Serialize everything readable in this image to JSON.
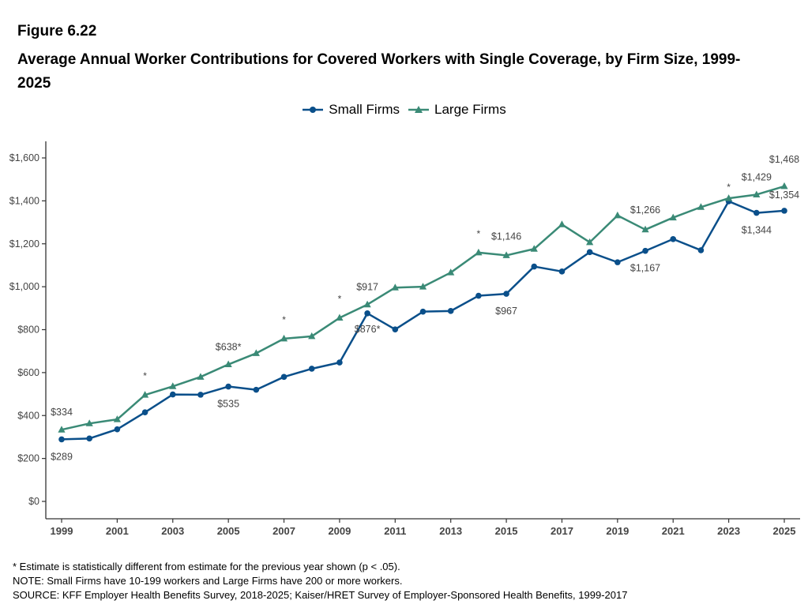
{
  "figure_label": "Figure 6.22",
  "title": "Average Annual Worker Contributions for Covered Workers with Single Coverage, by Firm Size, 1999-2025",
  "legend": [
    {
      "label": "Small Firms",
      "color": "#0a4f8a",
      "marker": "circle"
    },
    {
      "label": "Large Firms",
      "color": "#3a8a76",
      "marker": "triangle"
    }
  ],
  "footnotes": {
    "significance": "* Estimate is statistically different from estimate for the previous year shown (p < .05).",
    "note": "NOTE: Small Firms have 10-199 workers and Large Firms have 200 or more workers.",
    "source": "SOURCE: KFF Employer Health Benefits Survey, 2018-2025; Kaiser/HRET Survey of Employer-Sponsored Health Benefits, 1999-2017"
  },
  "chart_data": {
    "type": "line",
    "x": [
      1999,
      2000,
      2001,
      2002,
      2003,
      2004,
      2005,
      2006,
      2007,
      2008,
      2009,
      2010,
      2011,
      2012,
      2013,
      2014,
      2015,
      2016,
      2017,
      2018,
      2019,
      2020,
      2021,
      2022,
      2023,
      2024,
      2025
    ],
    "xlim": [
      1999,
      2025
    ],
    "ylim": [
      0,
      1600
    ],
    "xticks": [
      "1999",
      "2001",
      "2003",
      "2005",
      "2007",
      "2009",
      "2011",
      "2013",
      "2015",
      "2017",
      "2019",
      "2021",
      "2023",
      "2025"
    ],
    "yticks": [
      "$0",
      "$200",
      "$400",
      "$600",
      "$800",
      "$1,000",
      "$1,200",
      "$1,400",
      "$1,600"
    ],
    "grid": false,
    "legend_position": "top-center",
    "series": [
      {
        "name": "Small Firms",
        "color": "#0a4f8a",
        "marker": "circle",
        "values": [
          289,
          293,
          336,
          415,
          498,
          497,
          535,
          520,
          580,
          618,
          647,
          876,
          801,
          884,
          887,
          958,
          967,
          1094,
          1071,
          1161,
          1114,
          1167,
          1222,
          1170,
          1398,
          1344,
          1354
        ]
      },
      {
        "name": "Large Firms",
        "color": "#3a8a76",
        "marker": "triangle",
        "values": [
          334,
          363,
          382,
          496,
          536,
          580,
          638,
          690,
          758,
          769,
          855,
          917,
          996,
          1000,
          1066,
          1159,
          1146,
          1176,
          1290,
          1207,
          1332,
          1266,
          1322,
          1371,
          1412,
          1429,
          1468
        ]
      }
    ],
    "data_labels": [
      {
        "series": 0,
        "year": 1999,
        "text": "$289"
      },
      {
        "series": 1,
        "year": 1999,
        "text": "$334"
      },
      {
        "series": 0,
        "year": 2005,
        "text": "$535"
      },
      {
        "series": 1,
        "year": 2005,
        "text": "$638*"
      },
      {
        "series": 0,
        "year": 2010,
        "text": "$876*"
      },
      {
        "series": 1,
        "year": 2010,
        "text": "$917"
      },
      {
        "series": 0,
        "year": 2015,
        "text": "$967"
      },
      {
        "series": 1,
        "year": 2015,
        "text": "$1,146"
      },
      {
        "series": 0,
        "year": 2020,
        "text": "$1,167"
      },
      {
        "series": 1,
        "year": 2020,
        "text": "$1,266"
      },
      {
        "series": 0,
        "year": 2024,
        "text": "$1,344"
      },
      {
        "series": 1,
        "year": 2024,
        "text": "$1,429"
      },
      {
        "series": 0,
        "year": 2025,
        "text": "$1,354"
      },
      {
        "series": 1,
        "year": 2025,
        "text": "$1,468"
      }
    ],
    "asterisks": [
      {
        "series": 1,
        "year": 2002,
        "text": "*"
      },
      {
        "series": 1,
        "year": 2007,
        "text": "*"
      },
      {
        "series": 1,
        "year": 2009,
        "text": "*"
      },
      {
        "series": 1,
        "year": 2014,
        "text": "*"
      },
      {
        "series": 0,
        "year": 2023,
        "text": "*"
      }
    ]
  }
}
